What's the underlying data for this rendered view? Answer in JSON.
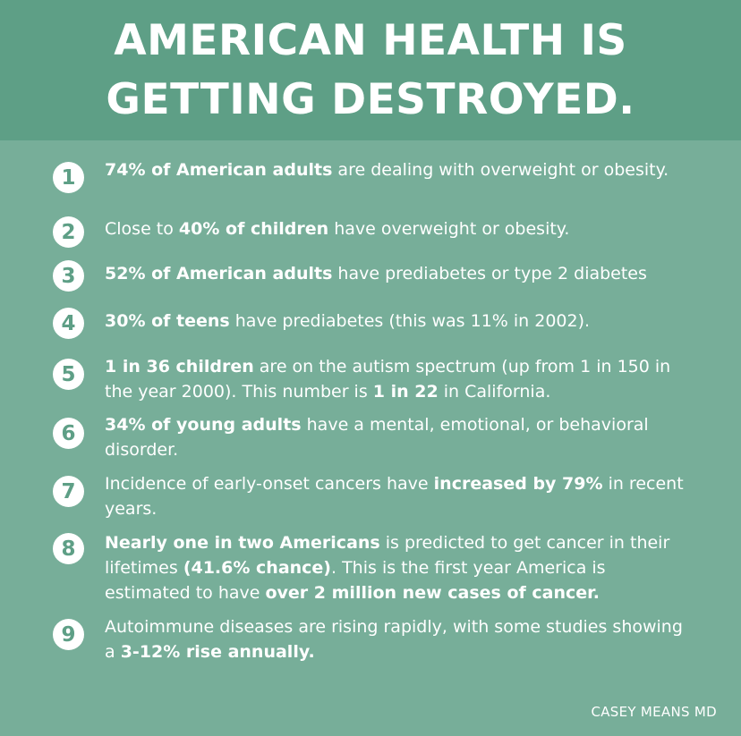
{
  "header": {
    "title_line1": "AMERICAN HEALTH IS",
    "title_line2": "GETTING DESTROYED."
  },
  "items": [
    {
      "number": "1",
      "segments": [
        {
          "text": "74% of American adults",
          "bold": true
        },
        {
          "text": " are dealing with overweight or obesity.",
          "bold": false
        }
      ]
    },
    {
      "number": "2",
      "segments": [
        {
          "text": "Close to ",
          "bold": false
        },
        {
          "text": "40% of children",
          "bold": true
        },
        {
          "text": " have overweight or obesity.",
          "bold": false
        }
      ]
    },
    {
      "number": "3",
      "segments": [
        {
          "text": "52% of American adults",
          "bold": true
        },
        {
          "text": " have prediabetes or type 2 diabetes",
          "bold": false
        }
      ]
    },
    {
      "number": "4",
      "segments": [
        {
          "text": "30% of teens",
          "bold": true
        },
        {
          "text": " have prediabetes (this was 11% in 2002).",
          "bold": false
        }
      ]
    },
    {
      "number": "5",
      "segments": [
        {
          "text": "1 in 36 children",
          "bold": true
        },
        {
          "text": " are on the autism spectrum (up from 1 in 150 in the year 2000). This number is ",
          "bold": false
        },
        {
          "text": "1 in 22",
          "bold": true
        },
        {
          "text": " in California.",
          "bold": false
        }
      ]
    },
    {
      "number": "6",
      "segments": [
        {
          "text": "34% of young adults",
          "bold": true
        },
        {
          "text": " have a mental, emotional, or behavioral disorder.",
          "bold": false
        }
      ]
    },
    {
      "number": "7",
      "segments": [
        {
          "text": "Incidence of early-onset cancers have ",
          "bold": false
        },
        {
          "text": "increased by 79%",
          "bold": true
        },
        {
          "text": " in recent years.",
          "bold": false
        }
      ]
    },
    {
      "number": "8",
      "segments": [
        {
          "text": "Nearly one in two Americans",
          "bold": true
        },
        {
          "text": " is predicted to get cancer in their lifetimes ",
          "bold": false
        },
        {
          "text": "(41.6% chance)",
          "bold": true
        },
        {
          "text": ". This is the first year America is estimated to have ",
          "bold": false
        },
        {
          "text": "over 2 million new cases of cancer.",
          "bold": true
        }
      ]
    },
    {
      "number": "9",
      "segments": [
        {
          "text": "Autoimmune diseases are rising rapidly, with some studies showing a ",
          "bold": false
        },
        {
          "text": "3-12% rise annually.",
          "bold": true
        }
      ]
    }
  ],
  "footer": {
    "credit": "CASEY MEANS MD"
  },
  "colors": {
    "header_bg": "#5e9f86",
    "body_bg": "#77ae99",
    "text": "#ffffff"
  }
}
